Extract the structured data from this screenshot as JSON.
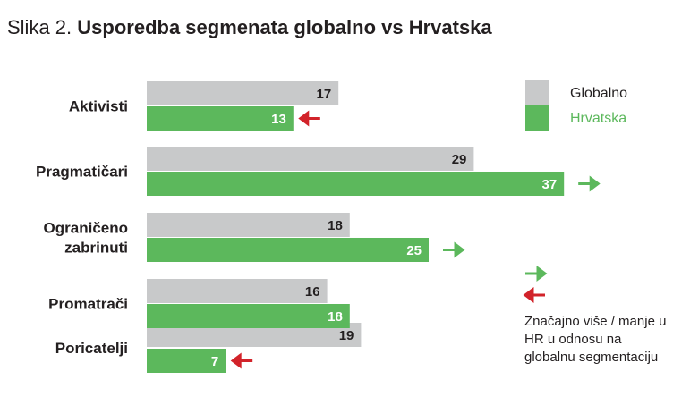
{
  "title": {
    "prefix": "Slika 2.",
    "main": "Usporedba segmenata globalno vs Hrvatska"
  },
  "colors": {
    "globalno": "#c8c9ca",
    "hrvatska": "#5cb85c",
    "arrow_up": "#5cb85c",
    "arrow_down": "#d2232a",
    "text_dark": "#231f20",
    "text_light": "#ffffff"
  },
  "legend": [
    {
      "name": "Globalno",
      "color": "#c8c9ca",
      "text_color": "#231f20"
    },
    {
      "name": "Hrvatska",
      "color": "#5cb85c",
      "text_color": "#5cb85c"
    }
  ],
  "arrow_legend": {
    "up_icon": "arrow-right-green-icon",
    "down_icon": "arrow-left-red-icon"
  },
  "note": "Značajno više / manje u HR u odnosu na globalnu segmentaciju",
  "chart_data": {
    "type": "bar",
    "orientation": "horizontal",
    "categories": [
      "Aktivisti",
      "Pragmatičari",
      "Ograničeno zabrinuti",
      "Promatrači",
      "Poricatelji"
    ],
    "category_lines": [
      [
        "Aktivisti"
      ],
      [
        "Pragmatičari"
      ],
      [
        "Ograničeno",
        "zabrinuti"
      ],
      [
        "Promatrači"
      ],
      [
        "Poricatelji"
      ]
    ],
    "series": [
      {
        "name": "Globalno",
        "values": [
          17,
          29,
          18,
          16,
          19
        ]
      },
      {
        "name": "Hrvatska",
        "values": [
          13,
          37,
          25,
          18,
          7
        ]
      }
    ],
    "significance": [
      "down",
      "up",
      "up",
      "none",
      "down"
    ],
    "xlim": [
      0,
      40
    ],
    "legend_position": "top-right",
    "grid": false
  }
}
